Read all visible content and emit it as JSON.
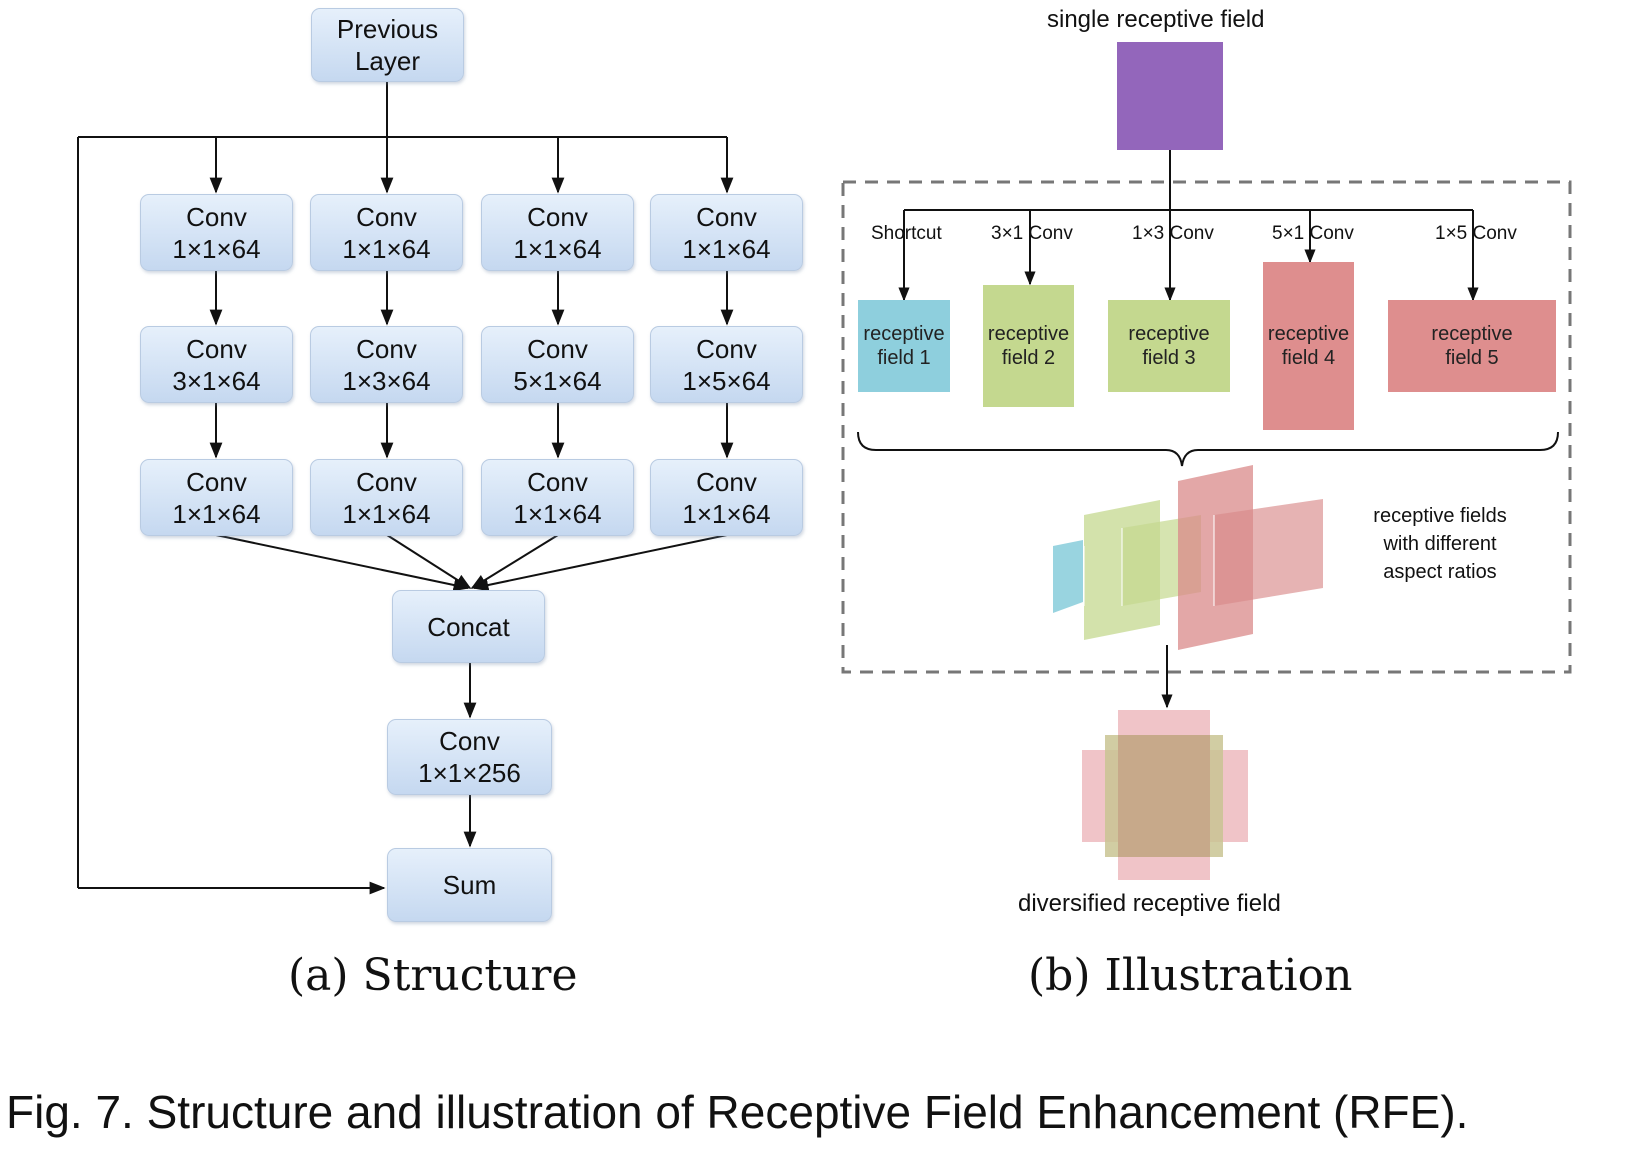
{
  "structure": {
    "previous_layer": [
      "Previous",
      "Layer"
    ],
    "branches": [
      [
        "Conv|1×1×64",
        "Conv|3×1×64",
        "Conv|1×1×64"
      ],
      [
        "Conv|1×1×64",
        "Conv|1×3×64",
        "Conv|1×1×64"
      ],
      [
        "Conv|1×1×64",
        "Conv|5×1×64",
        "Conv|1×1×64"
      ],
      [
        "Conv|1×1×64",
        "Conv|1×5×64",
        "Conv|1×1×64"
      ]
    ],
    "concat": "Concat",
    "final_conv": [
      "Conv",
      "1×1×256"
    ],
    "sum": "Sum",
    "caption": "(a)  Structure"
  },
  "illustration": {
    "top_label": "single receptive field",
    "branch_labels": [
      "Shortcut",
      "3×1 Conv",
      "1×3 Conv",
      "5×1 Conv",
      "1×5 Conv"
    ],
    "fields": [
      {
        "line1": "receptive",
        "line2": "field 1",
        "color": "#8ecfdd"
      },
      {
        "line1": "receptive",
        "line2": "field 2",
        "color": "#c4d88f"
      },
      {
        "line1": "receptive",
        "line2": "field 3",
        "color": "#c4d88f"
      },
      {
        "line1": "receptive",
        "line2": "field 4",
        "color": "#de8e8e"
      },
      {
        "line1": "receptive",
        "line2": "field 5",
        "color": "#de8e8e"
      }
    ],
    "aspect_note": [
      "receptive fields",
      "with different",
      "aspect ratios"
    ],
    "bottom_label": "diversified receptive field",
    "caption": "(b)  Illustration",
    "colors": {
      "single_field": "#9366bb",
      "blue": "#8ecfdd",
      "green": "#c4d88f",
      "red": "#d98a8a",
      "pink": "#f0c4c8",
      "tan": "#c7a98a"
    }
  },
  "figure_caption": "Fig. 7. Structure and illustration of Receptive Field Enhancement (RFE)."
}
